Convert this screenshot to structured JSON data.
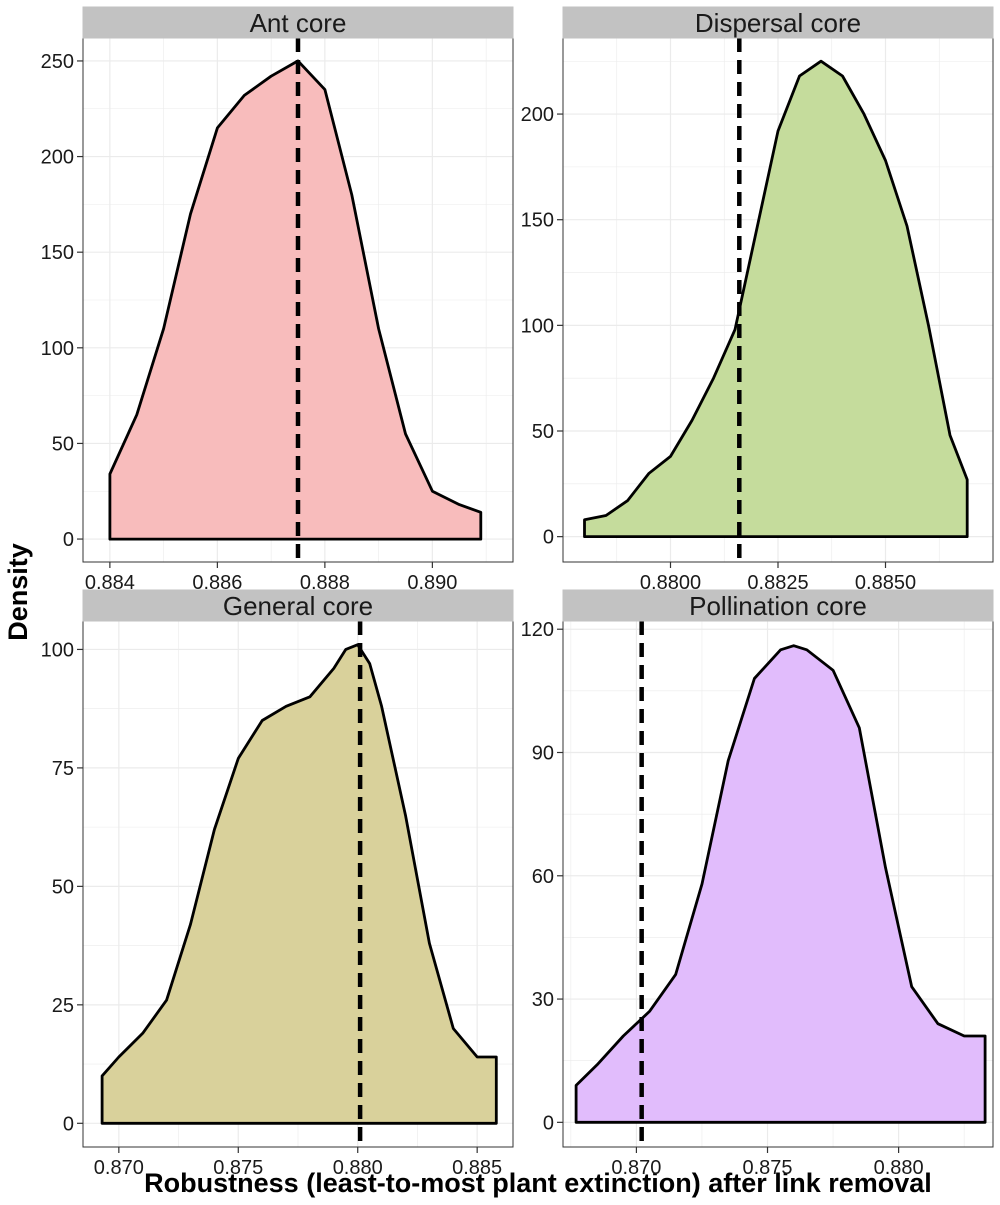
{
  "figure": {
    "ylabel": "Density",
    "xlabel": "Robustness (least-to-most plant extinction) after link removal"
  },
  "colors": {
    "strip_background": "#c2c2c2",
    "grid": "#ebebeb",
    "panel_border": "#333333",
    "curve": "#000000"
  },
  "chart_data": [
    {
      "type": "area",
      "title": "Ant core",
      "fill": "#f8bcbc",
      "xlim": [
        0.8835,
        0.8915
      ],
      "ylim": [
        -12,
        262
      ],
      "xticks": [
        0.884,
        0.886,
        0.888,
        0.89
      ],
      "xtick_labels": [
        "0.884",
        "0.886",
        "0.888",
        "0.890"
      ],
      "yticks": [
        0,
        50,
        100,
        150,
        200,
        250
      ],
      "ytick_labels": [
        "0",
        "50",
        "100",
        "150",
        "200",
        "250"
      ],
      "vline": 0.8875,
      "x": [
        0.884,
        0.8845,
        0.885,
        0.8855,
        0.886,
        0.8865,
        0.887,
        0.8875,
        0.888,
        0.8885,
        0.889,
        0.8895,
        0.89,
        0.8905,
        0.8909
      ],
      "y": [
        34,
        65,
        110,
        170,
        215,
        232,
        242,
        250,
        235,
        180,
        110,
        55,
        25,
        18,
        14
      ]
    },
    {
      "type": "area",
      "title": "Dispersal core",
      "fill": "#c5dc9c",
      "xlim": [
        0.8775,
        0.8875
      ],
      "ylim": [
        -12,
        236
      ],
      "xticks": [
        0.88,
        0.8825,
        0.885
      ],
      "xtick_labels": [
        "0.8800",
        "0.8825",
        "0.8850"
      ],
      "yticks": [
        0,
        50,
        100,
        150,
        200
      ],
      "ytick_labels": [
        "0",
        "50",
        "100",
        "150",
        "200"
      ],
      "vline": 0.8816,
      "x": [
        0.878,
        0.8785,
        0.879,
        0.8795,
        0.88,
        0.8805,
        0.881,
        0.8815,
        0.882,
        0.8825,
        0.883,
        0.8835,
        0.884,
        0.8845,
        0.885,
        0.8855,
        0.886,
        0.8865,
        0.8869
      ],
      "y": [
        8,
        10,
        17,
        30,
        38,
        55,
        75,
        98,
        145,
        192,
        218,
        225,
        218,
        200,
        178,
        147,
        100,
        48,
        27
      ]
    },
    {
      "type": "area",
      "title": "General core",
      "fill": "#d9d19b",
      "xlim": [
        0.8685,
        0.8865
      ],
      "ylim": [
        -5,
        106
      ],
      "xticks": [
        0.87,
        0.875,
        0.88,
        0.885
      ],
      "xtick_labels": [
        "0.870",
        "0.875",
        "0.880",
        "0.885"
      ],
      "yticks": [
        0,
        25,
        50,
        75,
        100
      ],
      "ytick_labels": [
        "0",
        "25",
        "50",
        "75",
        "100"
      ],
      "vline": 0.8801,
      "x": [
        0.8693,
        0.87,
        0.871,
        0.872,
        0.873,
        0.874,
        0.875,
        0.876,
        0.877,
        0.878,
        0.879,
        0.8795,
        0.88,
        0.8805,
        0.881,
        0.882,
        0.883,
        0.884,
        0.885,
        0.8858
      ],
      "y": [
        10,
        14,
        19,
        26,
        42,
        62,
        77,
        85,
        88,
        90,
        96,
        100,
        101,
        97,
        88,
        65,
        38,
        20,
        14,
        14
      ]
    },
    {
      "type": "area",
      "title": "Pollination core",
      "fill": "#e1bcfc",
      "xlim": [
        0.8672,
        0.8836
      ],
      "ylim": [
        -6,
        122
      ],
      "xticks": [
        0.87,
        0.875,
        0.88
      ],
      "xtick_labels": [
        "0.870",
        "0.875",
        "0.880"
      ],
      "yticks": [
        0,
        30,
        60,
        90,
        120
      ],
      "ytick_labels": [
        "0",
        "30",
        "60",
        "90",
        "120"
      ],
      "vline": 0.8702,
      "x": [
        0.8677,
        0.8685,
        0.8695,
        0.8705,
        0.8715,
        0.8725,
        0.8735,
        0.8745,
        0.8755,
        0.876,
        0.8765,
        0.8775,
        0.8785,
        0.8795,
        0.8805,
        0.8815,
        0.8825,
        0.8833
      ],
      "y": [
        9,
        14,
        21,
        27,
        36,
        58,
        88,
        108,
        115,
        116,
        115,
        110,
        96,
        62,
        33,
        24,
        21,
        21
      ]
    }
  ]
}
